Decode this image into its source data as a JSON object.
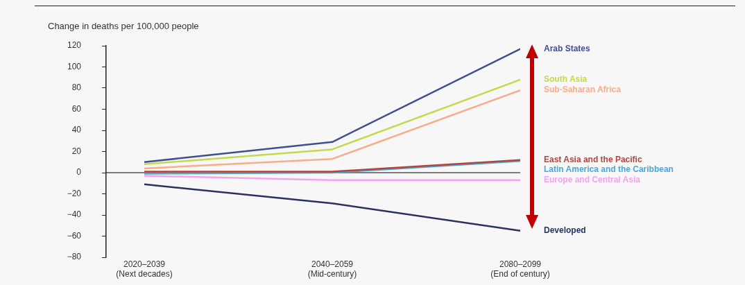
{
  "chart_data": {
    "type": "line",
    "ylabel": "Change in deaths per 100,000 people",
    "categories": [
      "2020–2039\n(Next decades)",
      "2040–2059\n(Mid-century)",
      "2080–2099\n(End of century)"
    ],
    "series": [
      {
        "name": "Arab States",
        "color": "#3f4f8f",
        "values": [
          10,
          29,
          117
        ]
      },
      {
        "name": "South Asia",
        "color": "#c5d94a",
        "values": [
          8,
          22,
          88
        ]
      },
      {
        "name": "Sub-Saharan Africa",
        "color": "#f7ad8a",
        "values": [
          4,
          13,
          78
        ]
      },
      {
        "name": "East Asia and the Pacific",
        "color": "#b5443c",
        "values": [
          1,
          1,
          12
        ]
      },
      {
        "name": "Latin America and the Caribbean",
        "color": "#4aa9d4",
        "values": [
          -1,
          0,
          11
        ]
      },
      {
        "name": "Europe and Central Asia",
        "color": "#f5a0f0",
        "values": [
          -3,
          -7,
          -7
        ]
      },
      {
        "name": "Developed",
        "color": "#2b3160",
        "values": [
          -11,
          -29,
          -55
        ]
      }
    ],
    "ylim": [
      -80,
      120
    ],
    "yticks": [
      {
        "value": -80,
        "label": "−80"
      },
      {
        "value": -60,
        "label": "−60"
      },
      {
        "value": -40,
        "label": "−40"
      },
      {
        "value": -20,
        "label": "−20"
      },
      0,
      20,
      40,
      60,
      80,
      100,
      120
    ],
    "ref_lines": [
      {
        "axis": "y",
        "value": 0,
        "color": "#000000"
      }
    ],
    "grid": false,
    "legend": false,
    "marker": "none",
    "line_style": "solid"
  }
}
